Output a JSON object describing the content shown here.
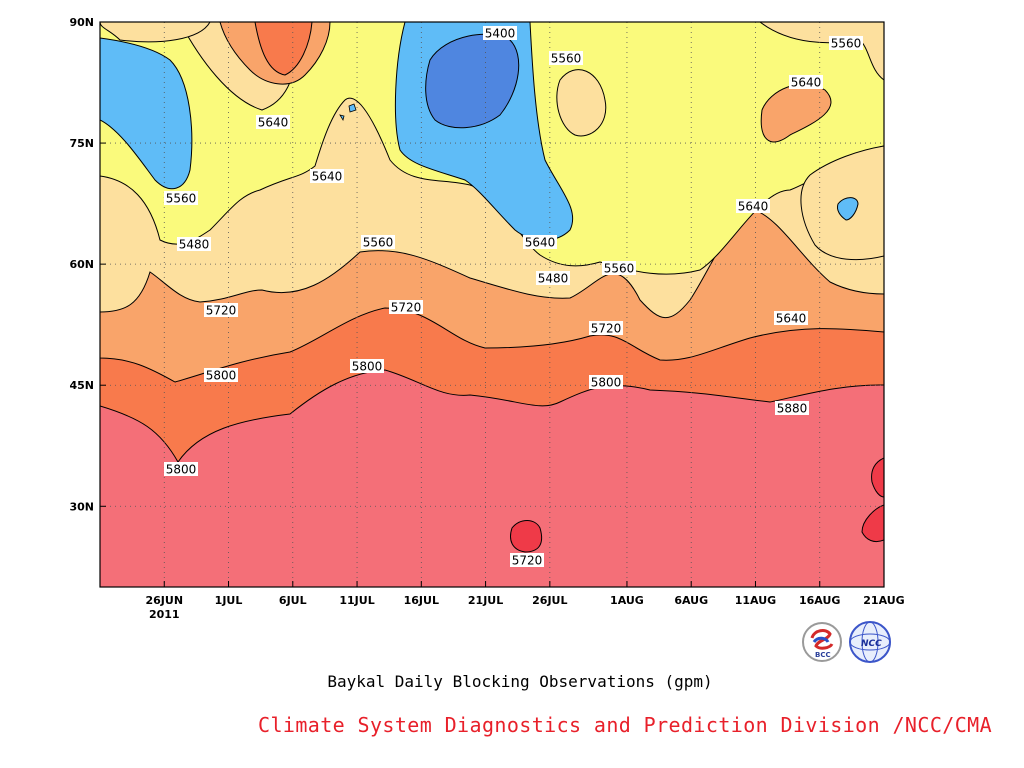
{
  "chart_data": {
    "type": "contour",
    "title": "Baykal Daily Blocking Observations (gpm)",
    "source": "Climate System Diagnostics and Prediction Division /NCC/CMA",
    "x_tick_labels": [
      "26JUN",
      "1JUL",
      "6JUL",
      "11JUL",
      "16JUL",
      "21JUL",
      "26JUL",
      "1AUG",
      "6AUG",
      "11AUG",
      "16AUG",
      "21AUG"
    ],
    "x_year_label": "2011",
    "x_range": [
      "2011-06-21",
      "2011-08-21"
    ],
    "y_tick_labels": [
      "30N",
      "45N",
      "60N",
      "75N",
      "90N"
    ],
    "y_range_deg": [
      20,
      90
    ],
    "contour_levels_gpm": [
      5400,
      5480,
      5560,
      5640,
      5720,
      5800,
      5880
    ],
    "fill_colors": {
      "below_5400": "#4f86e0",
      "5400_5480": "#5fbcf7",
      "5480_5560": "#fafa7c",
      "5560_5640": "#fde09e",
      "5640_5720": "#f9a46a",
      "5720_5800": "#f87a4c",
      "5800_5880": "#f46f78",
      "above_5880": "#ef3a48"
    },
    "contour_labels": [
      {
        "value": "5400"
      },
      {
        "value": "5560"
      },
      {
        "value": "5560"
      },
      {
        "value": "5640"
      },
      {
        "value": "5640"
      },
      {
        "value": "5640"
      },
      {
        "value": "5560"
      },
      {
        "value": "5480"
      },
      {
        "value": "5560"
      },
      {
        "value": "5640"
      },
      {
        "value": "5480"
      },
      {
        "value": "5560"
      },
      {
        "value": "5640"
      },
      {
        "value": "5720"
      },
      {
        "value": "5720"
      },
      {
        "value": "5720"
      },
      {
        "value": "5640"
      },
      {
        "value": "5800"
      },
      {
        "value": "5800"
      },
      {
        "value": "5800"
      },
      {
        "value": "5800"
      },
      {
        "value": "5880"
      },
      {
        "value": "5720"
      }
    ],
    "grid": "dotted"
  },
  "logos": [
    "BCC",
    "NCC"
  ]
}
